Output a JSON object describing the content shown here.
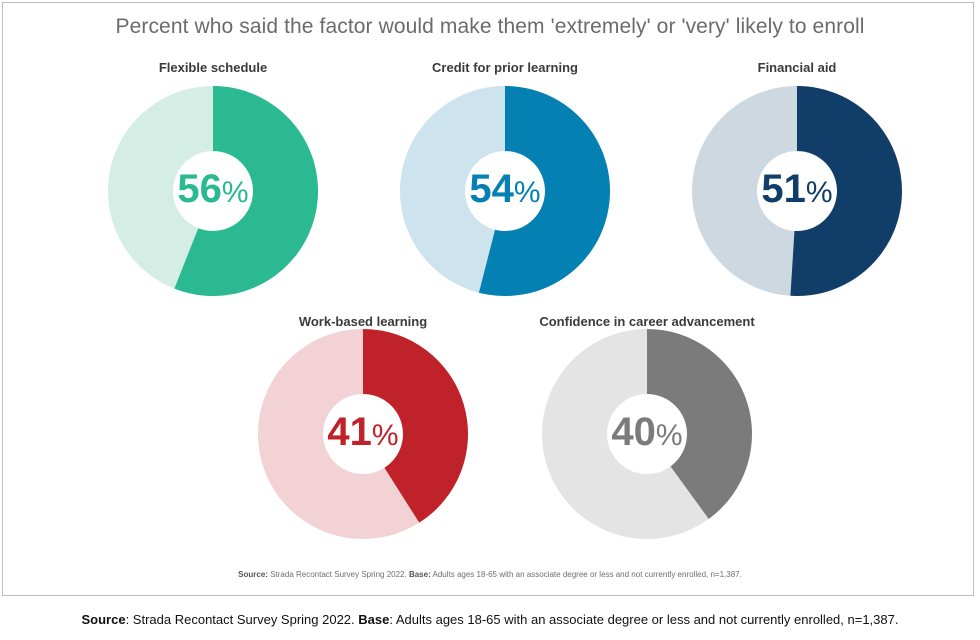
{
  "chart_data": {
    "type": "pie",
    "title": "Percent who said the factor would make them 'extremely' or 'very' likely to enroll",
    "items": [
      {
        "label": "Flexible schedule",
        "value": 56,
        "value_text": "56",
        "unit": "%",
        "color": "#2bb992",
        "track_color": "#d4eee5",
        "text_color": "#2bb992"
      },
      {
        "label": "Credit for prior learning",
        "value": 54,
        "value_text": "54",
        "unit": "%",
        "color": "#0580b2",
        "track_color": "#cde3ee",
        "text_color": "#0580b2"
      },
      {
        "label": "Financial aid",
        "value": 51,
        "value_text": "51",
        "unit": "%",
        "color": "#113d69",
        "track_color": "#ced8e1",
        "text_color": "#113d69"
      },
      {
        "label": "Work-based learning",
        "value": 41,
        "value_text": "41",
        "unit": "%",
        "color": "#c0222a",
        "track_color": "#f3d2d5",
        "text_color": "#c0222a"
      },
      {
        "label": "Confidence in career advancement",
        "value": 40,
        "value_text": "40",
        "unit": "%",
        "color": "#7b7b7b",
        "track_color": "#e4e4e4",
        "text_color": "#7b7b7b"
      }
    ]
  },
  "inner_source": {
    "source_label": "Source:",
    "source_text": " Strada Recontact Survey Spring 2022. ",
    "base_label": "Base:",
    "base_text": " Adults ages 18-65 with an associate degree or less and not currently enrolled, n=1,387."
  },
  "outer_source": {
    "source_label": "Source",
    "source_text": ": Strada Recontact Survey Spring 2022. ",
    "base_label": "Base",
    "base_text": ": Adults ages 18-65 with an associate degree or less and not currently enrolled, n=1,387."
  }
}
